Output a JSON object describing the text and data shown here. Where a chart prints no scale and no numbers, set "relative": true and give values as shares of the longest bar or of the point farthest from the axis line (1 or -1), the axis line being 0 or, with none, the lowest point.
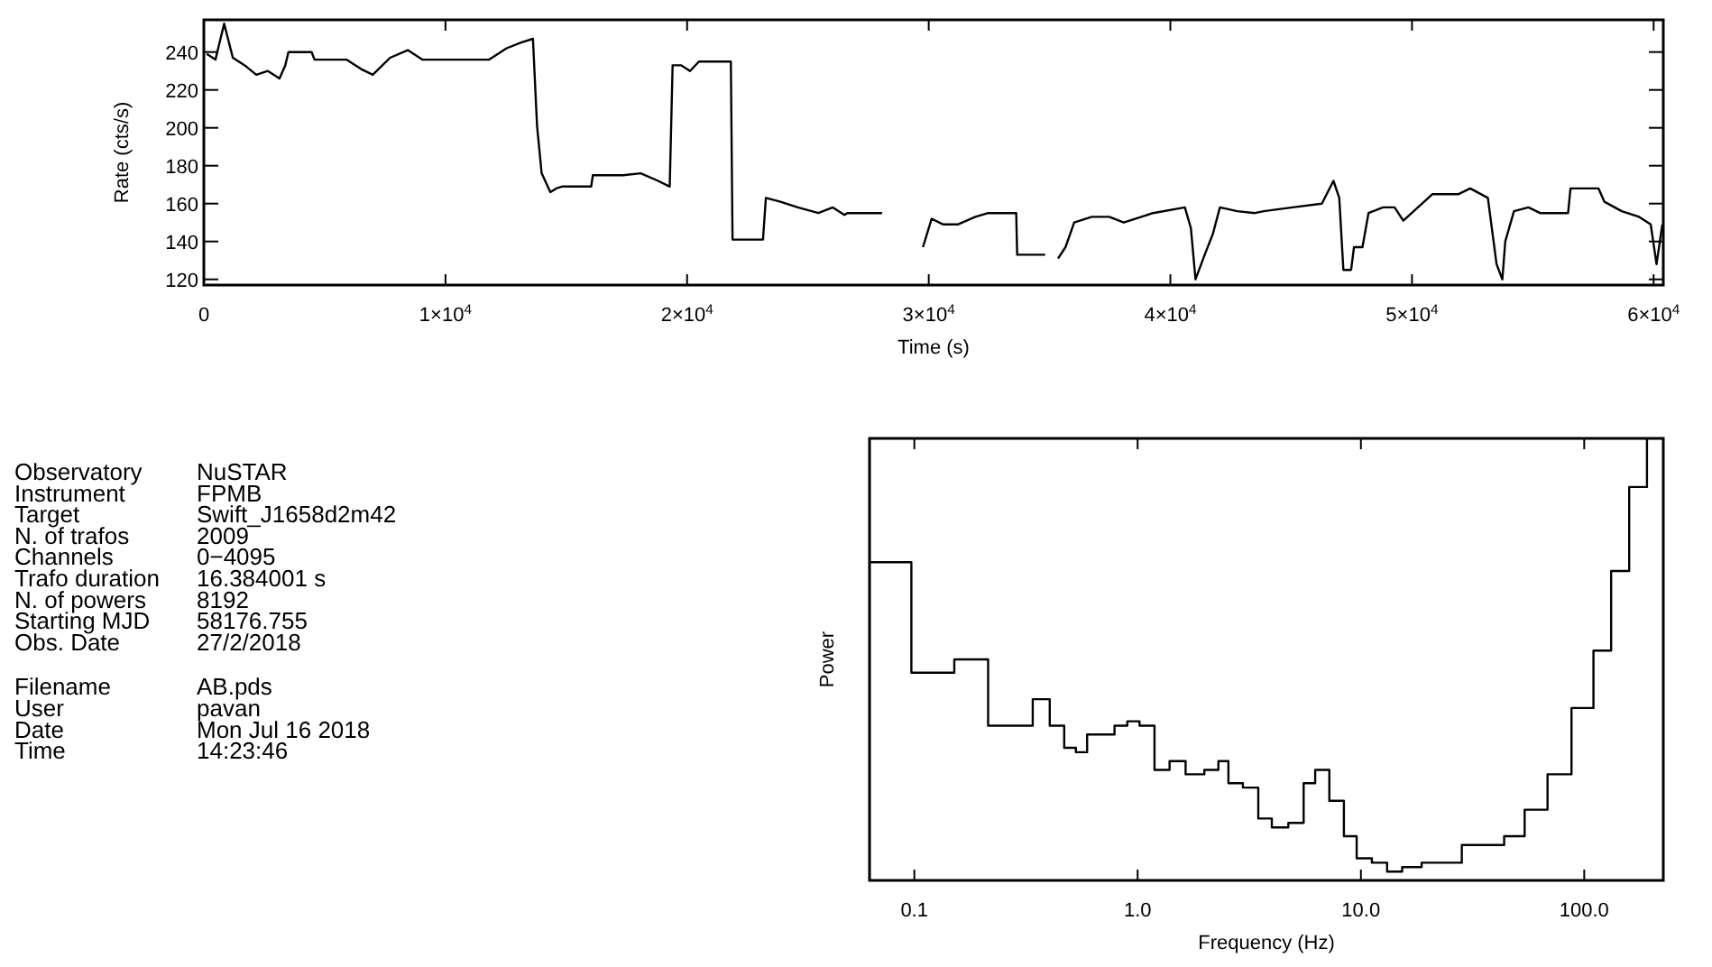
{
  "chart_data": [
    {
      "type": "line",
      "xlabel": "Time (s)",
      "ylabel": "Rate (cts/s)",
      "xlim": [
        0,
        60400
      ],
      "ylim": [
        117,
        257
      ],
      "xticks": [
        0,
        {
          "value": 10000,
          "label": "1×10$^{4}$"
        },
        {
          "value": 20000,
          "label": "2×10$^{4}$"
        },
        {
          "value": 30000,
          "label": "3×10$^{4}$"
        },
        {
          "value": 40000,
          "label": "4×10$^{4}$"
        },
        {
          "value": 50000,
          "label": "5×10$^{4}$"
        },
        {
          "value": 60000,
          "label": "6×10$^{4}$"
        }
      ],
      "yticks": [
        120,
        140,
        160,
        180,
        200,
        220,
        240
      ],
      "color": "#000000",
      "line_style": "solid",
      "x": [
        120,
        480,
        840,
        1200,
        1690,
        2170,
        2650,
        3130,
        3370,
        3500,
        4460,
        4580,
        5900,
        6510,
        6990,
        7710,
        8440,
        9040,
        11450,
        11810,
        12530,
        13130,
        13620,
        13790,
        13980,
        14340,
        14580,
        14820,
        16030,
        16100,
        17350,
        18080,
        18800,
        19280,
        19400,
        19760,
        20120,
        20490,
        21810,
        21880,
        23140,
        23260,
        23860,
        24580,
        25430,
        26030,
        26510,
        26630,
        28070,
        28140,
        29640,
        29760,
        30120,
        30600,
        31200,
        31930,
        32460,
        33620,
        33660,
        34820,
        35010,
        35300,
        35350,
        35660,
        36020,
        36750,
        37470,
        38070,
        39280,
        40600,
        40850,
        41040,
        41450,
        41760,
        42050,
        42770,
        43500,
        43860,
        45060,
        46270,
        46750,
        46990,
        47160,
        47480,
        47600,
        47950,
        48200,
        48800,
        49280,
        49640,
        50850,
        51930,
        52410,
        53140,
        53500,
        53740,
        53860,
        54220,
        54820,
        55300,
        56460,
        56560,
        57720,
        57960,
        58680,
        59400,
        59880,
        60120,
        60360
      ],
      "values": [
        239,
        236,
        255,
        237,
        233,
        228,
        230,
        226,
        233,
        240,
        240,
        236,
        236,
        231,
        228,
        237,
        241,
        236,
        236,
        236,
        242,
        245,
        247,
        201,
        176,
        166,
        168,
        169,
        169,
        175,
        175,
        176,
        172,
        169,
        233,
        233,
        230,
        235,
        235,
        141,
        141,
        163,
        161,
        158,
        155,
        158,
        154,
        155,
        155,
        null,
        null,
        137,
        152,
        149,
        149,
        153,
        155,
        155,
        133,
        133,
        null,
        null,
        131,
        137,
        150,
        153,
        153,
        150,
        155,
        158,
        147,
        120,
        134,
        144,
        158,
        156,
        155,
        156,
        158,
        160,
        172,
        163,
        125,
        125,
        137,
        137,
        155,
        158,
        158,
        151,
        165,
        165,
        168,
        163,
        128,
        120,
        140,
        156,
        158,
        155,
        155,
        168,
        168,
        161,
        156,
        153,
        149,
        128,
        149
      ]
    },
    {
      "type": "other",
      "annotations": [
        "Observatory",
        "NuSTAR",
        "Instrument",
        "FPMB",
        "Target",
        "Swift_J1658d2m42",
        "N. of trafos",
        "2009",
        "Channels",
        "0−4095",
        "Trafo duration",
        "16.384001 s",
        "N. of powers",
        "8192",
        "Starting MJD",
        "58176.755",
        "Obs. Date",
        "27/2/2018",
        "Filename",
        "AB.pds",
        "User",
        "pavan",
        "Date",
        "Mon Jul 16 2018",
        "Time",
        "14:23:46"
      ]
    },
    {
      "type": "step",
      "relative": true,
      "log": "x",
      "xlabel": "Frequency (Hz)",
      "ylabel": "Power",
      "xlim": [
        0.063,
        226
      ],
      "xticks": [
        {
          "value": 0.1,
          "label": "0.1"
        },
        {
          "value": 1,
          "label": "1.0"
        },
        {
          "value": 10,
          "label": "10.0"
        },
        {
          "value": 100,
          "label": "100.0"
        }
      ],
      "color": "#000000",
      "x": [
        0.063,
        0.097,
        0.151,
        0.214,
        0.277,
        0.339,
        0.404,
        0.469,
        0.529,
        0.594,
        0.678,
        0.788,
        0.899,
        1.02,
        1.19,
        1.39,
        1.64,
        1.99,
        2.3,
        2.55,
        2.96,
        3.47,
        3.99,
        4.73,
        5.54,
        6.24,
        7.22,
        8.39,
        9.57,
        11.2,
        13.1,
        15.3,
        18.7,
        22.9,
        28.3,
        35.8,
        43.8,
        54.1,
        68.5,
        87.7,
        110,
        132,
        159,
        191
      ],
      "values": [
        0.72,
        0.47,
        0.5,
        0.35,
        0.35,
        0.41,
        0.35,
        0.3,
        0.29,
        0.33,
        0.33,
        0.35,
        0.36,
        0.35,
        0.25,
        0.27,
        0.24,
        0.25,
        0.27,
        0.22,
        0.21,
        0.14,
        0.12,
        0.13,
        0.22,
        0.25,
        0.18,
        0.1,
        0.05,
        0.04,
        0.02,
        0.03,
        0.04,
        0.04,
        0.08,
        0.08,
        0.1,
        0.16,
        0.24,
        0.39,
        0.52,
        0.7,
        0.89,
        1.0
      ]
    }
  ]
}
